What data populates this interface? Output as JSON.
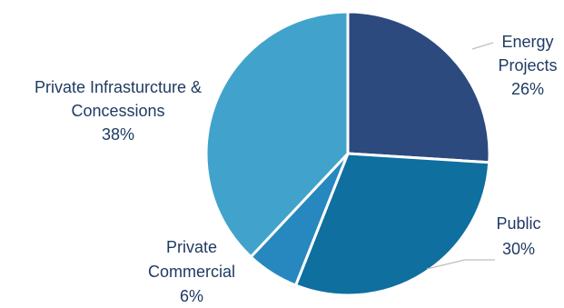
{
  "chart_data": {
    "type": "pie",
    "slices": [
      {
        "label_lines": [
          "Energy",
          "Projects"
        ],
        "percent_label": "26%",
        "value": 26,
        "color": "#2c4a7e"
      },
      {
        "label_lines": [
          "Public"
        ],
        "percent_label": "30%",
        "value": 30,
        "color": "#0f6f9e"
      },
      {
        "label_lines": [
          "Private",
          "Commercial"
        ],
        "percent_label": "6%",
        "value": 6,
        "color": "#2787bf"
      },
      {
        "label_lines": [
          "Private Infrasturcture &",
          "Concessions"
        ],
        "percent_label": "38%",
        "value": 38,
        "color": "#41a3cc"
      }
    ],
    "start_angle_deg": 0,
    "direction": "clockwise",
    "legend": "none"
  }
}
